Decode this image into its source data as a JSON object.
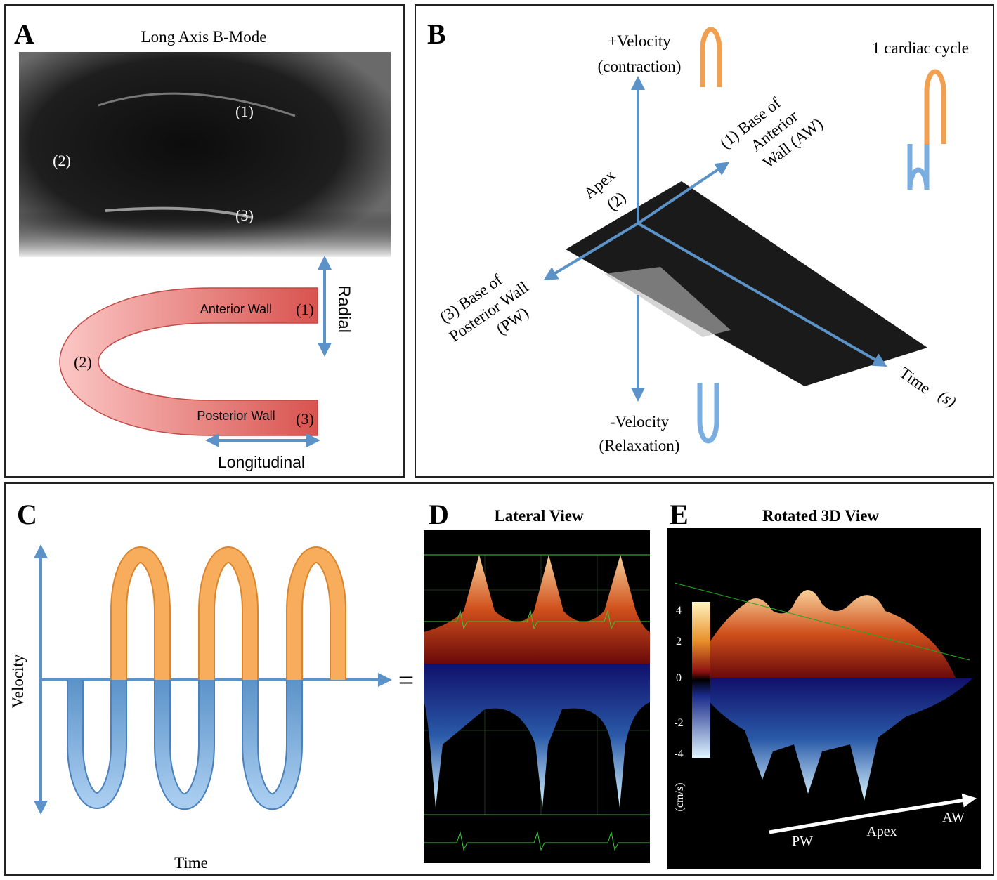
{
  "panels": {
    "a": {
      "letter": "A",
      "title": "Long Axis B-Mode",
      "image_labels": [
        "(1)",
        "(2)",
        "(3)"
      ],
      "radial": "Radial",
      "anterior_wall": "Anterior Wall",
      "anterior_num": "(1)",
      "apex_num": "(2)",
      "posterior_wall": "Posterior Wall",
      "posterior_num": "(3)",
      "longitudinal": "Longitudinal"
    },
    "b": {
      "letter": "B",
      "plus_velocity": [
        "+Velocity",
        "(contraction)"
      ],
      "cardiac_cycle": "1 cardiac cycle",
      "anterior_base": [
        "(1) Base of",
        "Anterior",
        "Wall (AW)"
      ],
      "apex": [
        "Apex",
        "(2)"
      ],
      "posterior_base": [
        "(3) Base of",
        "Posterior Wall",
        "(PW)"
      ],
      "time": "Time",
      "time_unit": "(s)",
      "minus_velocity": [
        "-Velocity",
        "(Relaxation)"
      ]
    },
    "c": {
      "letter": "C",
      "y_axis": "Velocity",
      "x_axis": "Time",
      "equals": "="
    },
    "d": {
      "letter": "D",
      "title": "Lateral View"
    },
    "e": {
      "letter": "E",
      "title": "Rotated 3D View",
      "colorbar_ticks": [
        "4",
        "2",
        "0",
        "-2",
        "-4"
      ],
      "colorbar_unit": "(cm/s)",
      "axis_labels": [
        "PW",
        "Apex",
        "AW"
      ]
    }
  }
}
